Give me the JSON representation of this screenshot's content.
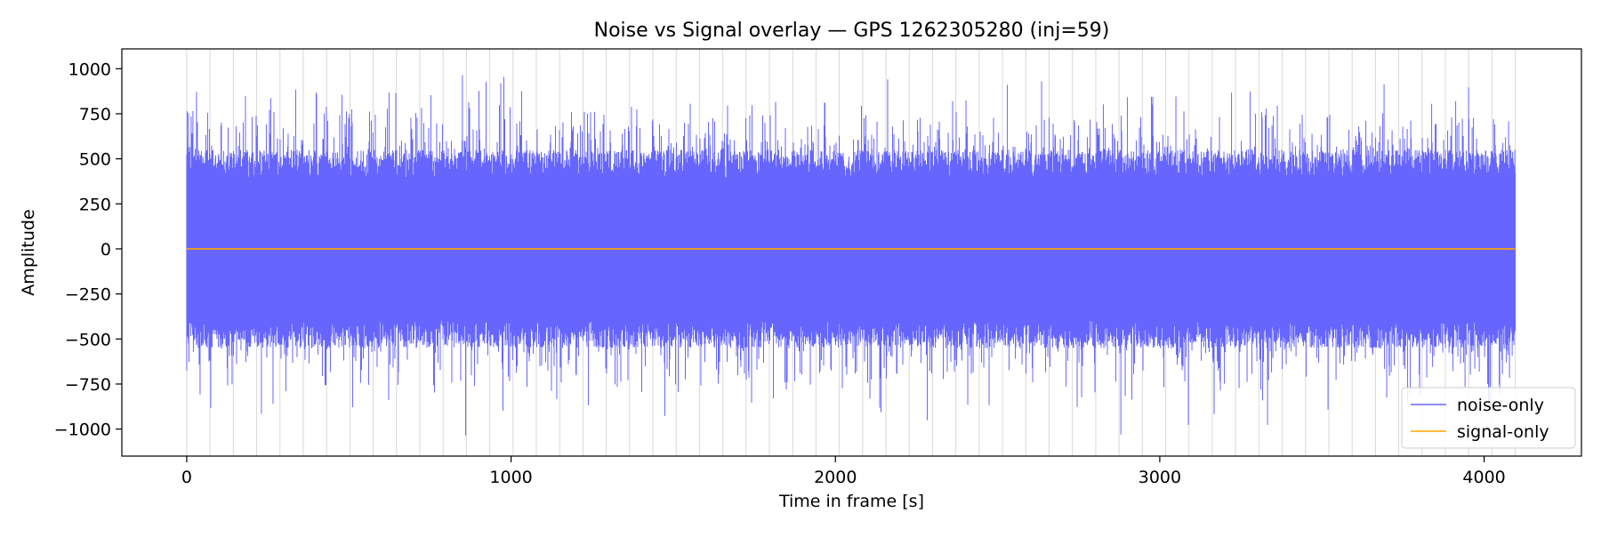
{
  "chart_data": {
    "type": "line",
    "title": "Noise vs Signal overlay — GPS 1262305280 (inj=59)",
    "xlabel": "Time in frame [s]",
    "ylabel": "Amplitude",
    "xlim": [
      -200,
      4300
    ],
    "ylim": [
      -1150,
      1110
    ],
    "x_ticks": [
      0,
      1000,
      2000,
      3000,
      4000
    ],
    "x_tick_labels": [
      "0",
      "1000",
      "2000",
      "3000",
      "4000"
    ],
    "y_ticks": [
      -1000,
      -750,
      -500,
      -250,
      0,
      250,
      500,
      750,
      1000
    ],
    "y_tick_labels": [
      "−1000",
      "−750",
      "−500",
      "−250",
      "0",
      "250",
      "500",
      "750",
      "1000"
    ],
    "grid": "faint vertical lines",
    "legend_position": "lower-right",
    "series": [
      {
        "name": "noise-only",
        "color": "#6666ff",
        "x_range": [
          0,
          4096
        ],
        "typical_range": [
          -550,
          550
        ],
        "peak_max": 965,
        "peak_min": -1035
      },
      {
        "name": "signal-only",
        "color": "#ffa500",
        "x_range": [
          0,
          4096
        ],
        "values_approx": 0
      }
    ]
  }
}
